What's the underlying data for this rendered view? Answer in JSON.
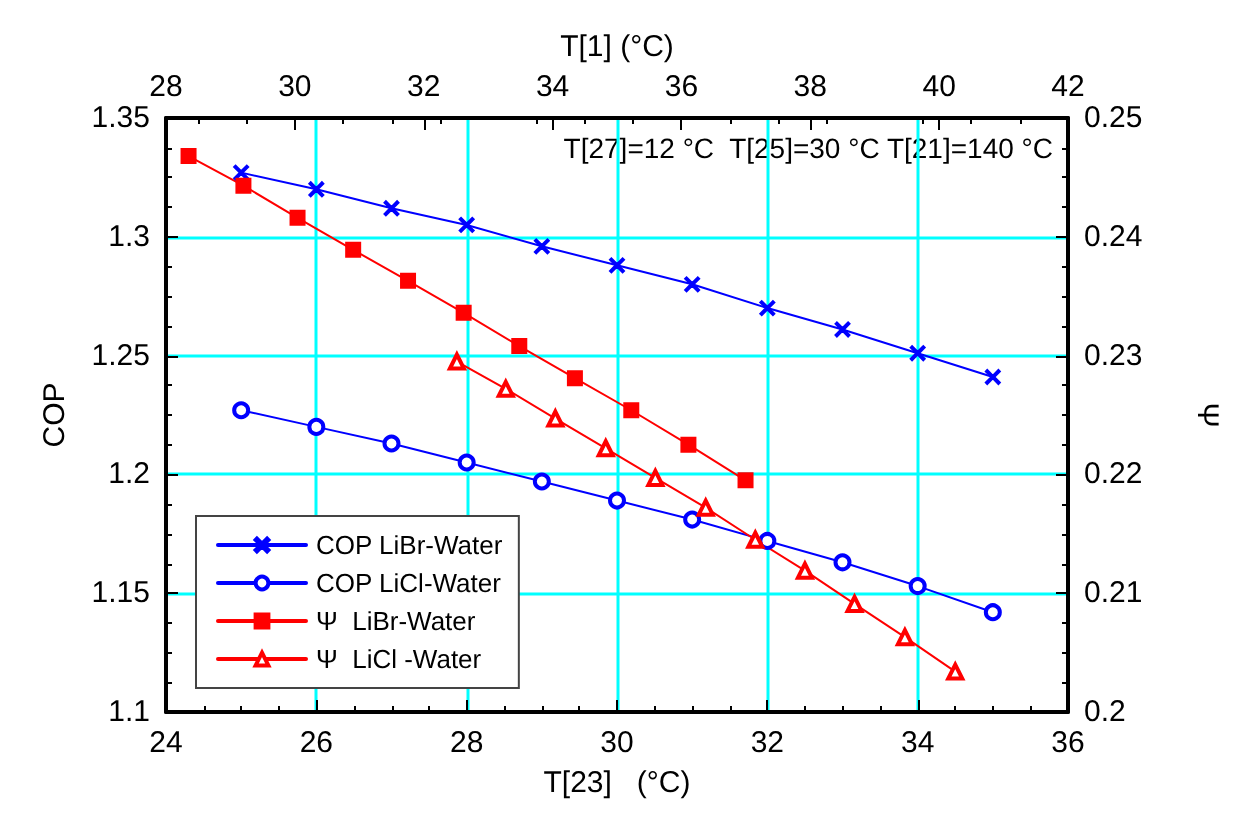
{
  "chart_data": {
    "type": "line",
    "xlabel": "T[23]   (°C)",
    "x2label": "T[1] (°C)",
    "ylabel": "COP",
    "y2label": "Ψ",
    "annotations": [
      "T[27]=12 °C  T[25]=30 °C T[21]=140 °C"
    ],
    "xlim": [
      24,
      36
    ],
    "xticks": [
      24,
      26,
      28,
      30,
      32,
      34,
      36
    ],
    "x2lim": [
      28,
      42
    ],
    "x2ticks": [
      28,
      30,
      32,
      34,
      36,
      38,
      40,
      42
    ],
    "ylim": [
      1.1,
      1.35
    ],
    "yticks": [
      1.1,
      1.15,
      1.2,
      1.25,
      1.3,
      1.35
    ],
    "y2lim": [
      0.2,
      0.25
    ],
    "y2ticks": [
      0.2,
      0.21,
      0.22,
      0.23,
      0.24,
      0.25
    ],
    "grid": true,
    "legend": "bottom left",
    "series": [
      {
        "name": "COP LiBr-Water",
        "color": "#0000ff",
        "marker": "cross",
        "x": [
          25,
          26,
          27,
          28,
          29,
          30,
          31,
          32,
          33,
          34,
          35
        ],
        "values": [
          1.327,
          1.32,
          1.312,
          1.305,
          1.296,
          1.288,
          1.28,
          1.27,
          1.261,
          1.251,
          1.241
        ]
      },
      {
        "name": "COP LiCl-Water",
        "color": "#0000ff",
        "marker": "circle",
        "x": [
          25,
          26,
          27,
          28,
          29,
          30,
          31,
          32,
          33,
          34,
          35
        ],
        "values": [
          1.227,
          1.22,
          1.213,
          1.205,
          1.197,
          1.189,
          1.181,
          1.172,
          1.163,
          1.153,
          1.142
        ]
      },
      {
        "name": "Ψ  LiBr-Water",
        "color": "#ff0000",
        "marker": "square",
        "axis": "y2",
        "x": [
          24.3,
          25.03,
          25.75,
          26.49,
          27.22,
          27.96,
          28.7,
          29.44,
          30.19,
          30.95,
          31.71
        ],
        "values": [
          0.2468,
          0.2443,
          0.2416,
          0.2389,
          0.2363,
          0.2336,
          0.2308,
          0.2281,
          0.2254,
          0.2225,
          0.2195
        ]
      },
      {
        "name": "Ψ  LiCl -Water",
        "color": "#ff0000",
        "marker": "triangle",
        "axis": "y2",
        "x": [
          27.87,
          28.52,
          29.18,
          29.85,
          30.51,
          31.18,
          31.84,
          32.5,
          33.16,
          33.83,
          34.5
        ],
        "values": [
          0.2295,
          0.2272,
          0.2247,
          0.2222,
          0.2197,
          0.2172,
          0.2145,
          0.2119,
          0.2091,
          0.2063,
          0.2034
        ]
      }
    ]
  }
}
